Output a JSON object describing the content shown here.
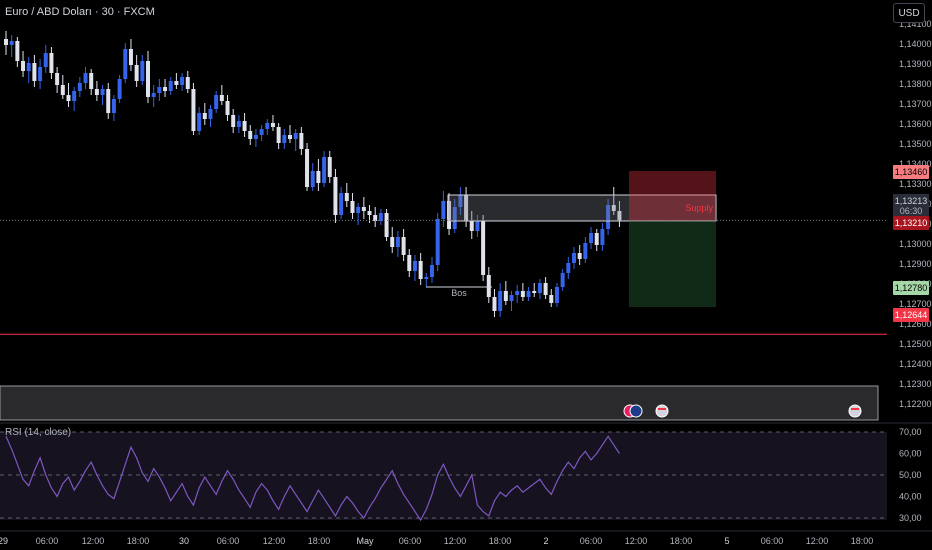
{
  "header": {
    "symbol_title": "Euro / ABD Doları · 30 · FXCM",
    "currency": "USD"
  },
  "rsi_title": "RSI (14, close)",
  "price_axis": {
    "ticks": [
      "1,14100",
      "1,14000",
      "1,13900",
      "1,13800",
      "1,13700",
      "1,13600",
      "1,13500",
      "1,13400",
      "1,13300",
      "1,13200",
      "1,13100",
      "1,13000",
      "1,12900",
      "1,12800",
      "1,12700",
      "1,12600",
      "1,12500",
      "1,12400",
      "1,12300",
      "1,12200"
    ],
    "current_price": "1,13213",
    "countdown": "06:30",
    "stop_loss": "1,13460",
    "entry": "1,13210",
    "take_profit": "1,12780",
    "support_line": "1,12644"
  },
  "rsi_axis": {
    "ticks": [
      "70,00",
      "60,00",
      "50,00",
      "40,00",
      "30,00"
    ]
  },
  "time_axis": {
    "labels": [
      "29",
      "06:00",
      "12:00",
      "18:00",
      "30",
      "06:00",
      "12:00",
      "18:00",
      "May",
      "06:00",
      "12:00",
      "18:00",
      "2",
      "06:00",
      "12:00",
      "18:00",
      "5",
      "06:00",
      "12:00",
      "18:00"
    ]
  },
  "annotations": {
    "supply_label": "Supply",
    "bos_label": "Bos"
  },
  "colors": {
    "bull": "#3563e9",
    "bear": "#e0e3eb",
    "red_line": "#f23645",
    "sl_zone": "#f23645",
    "tp_zone": "#1e3a25",
    "rsi_line": "#7e57c2"
  },
  "icons": [
    "flag-icon-eu-euro",
    "flag-icon-eu",
    "flag-icon-us",
    "flag-icon-us"
  ],
  "chart_data": {
    "type": "candlestick",
    "y_range": [
      1.1215,
      1.1415
    ],
    "x_range_days": [
      "29",
      "30",
      "May",
      "2",
      "5"
    ],
    "candles": [
      [
        1.1412,
        1.1416,
        1.1404,
        1.1409
      ],
      [
        1.1409,
        1.1414,
        1.1403,
        1.1411
      ],
      [
        1.1411,
        1.1413,
        1.1398,
        1.1401
      ],
      [
        1.1401,
        1.1406,
        1.1393,
        1.1396
      ],
      [
        1.1396,
        1.1403,
        1.139,
        1.14
      ],
      [
        1.14,
        1.1404,
        1.1388,
        1.1391
      ],
      [
        1.1391,
        1.1402,
        1.1387,
        1.1398
      ],
      [
        1.1398,
        1.1409,
        1.1395,
        1.1405
      ],
      [
        1.1405,
        1.1408,
        1.1392,
        1.1395
      ],
      [
        1.1395,
        1.1398,
        1.1385,
        1.1389
      ],
      [
        1.1389,
        1.1394,
        1.1382,
        1.1384
      ],
      [
        1.1384,
        1.139,
        1.1378,
        1.1381
      ],
      [
        1.1381,
        1.1388,
        1.1376,
        1.1386
      ],
      [
        1.1386,
        1.1393,
        1.1383,
        1.139
      ],
      [
        1.139,
        1.1398,
        1.1387,
        1.1395
      ],
      [
        1.1395,
        1.1397,
        1.1384,
        1.1387
      ],
      [
        1.1387,
        1.1391,
        1.1381,
        1.1384
      ],
      [
        1.1384,
        1.1389,
        1.1379,
        1.1387
      ],
      [
        1.1387,
        1.139,
        1.1372,
        1.1375
      ],
      [
        1.1375,
        1.1384,
        1.1371,
        1.1382
      ],
      [
        1.1382,
        1.1394,
        1.138,
        1.1392
      ],
      [
        1.1392,
        1.141,
        1.139,
        1.1407
      ],
      [
        1.1407,
        1.1412,
        1.1396,
        1.1399
      ],
      [
        1.1399,
        1.1404,
        1.1388,
        1.1391
      ],
      [
        1.1391,
        1.1404,
        1.1389,
        1.1401
      ],
      [
        1.1401,
        1.1406,
        1.138,
        1.1383
      ],
      [
        1.1383,
        1.1389,
        1.1378,
        1.1385
      ],
      [
        1.1385,
        1.1392,
        1.1381,
        1.1388
      ],
      [
        1.1388,
        1.1392,
        1.1383,
        1.1386
      ],
      [
        1.1386,
        1.1393,
        1.1384,
        1.1391
      ],
      [
        1.1391,
        1.1395,
        1.1387,
        1.1389
      ],
      [
        1.1389,
        1.1395,
        1.1386,
        1.1393
      ],
      [
        1.1393,
        1.1396,
        1.1385,
        1.1387
      ],
      [
        1.1387,
        1.139,
        1.1364,
        1.1366
      ],
      [
        1.1366,
        1.1378,
        1.1364,
        1.1375
      ],
      [
        1.1375,
        1.138,
        1.1369,
        1.1372
      ],
      [
        1.1372,
        1.1379,
        1.1368,
        1.1377
      ],
      [
        1.1377,
        1.1386,
        1.1375,
        1.1384
      ],
      [
        1.1384,
        1.1389,
        1.1379,
        1.1381
      ],
      [
        1.1381,
        1.1384,
        1.1371,
        1.1374
      ],
      [
        1.1374,
        1.1377,
        1.1365,
        1.1368
      ],
      [
        1.1368,
        1.1374,
        1.1365,
        1.1371
      ],
      [
        1.1371,
        1.1375,
        1.1363,
        1.1366
      ],
      [
        1.1366,
        1.1369,
        1.1359,
        1.1362
      ],
      [
        1.1362,
        1.1367,
        1.1358,
        1.1364
      ],
      [
        1.1364,
        1.1369,
        1.1361,
        1.1367
      ],
      [
        1.1367,
        1.1372,
        1.1364,
        1.137
      ],
      [
        1.137,
        1.1374,
        1.1366,
        1.1368
      ],
      [
        1.1368,
        1.137,
        1.1357,
        1.136
      ],
      [
        1.136,
        1.1367,
        1.1357,
        1.1364
      ],
      [
        1.1364,
        1.1369,
        1.136,
        1.1362
      ],
      [
        1.1362,
        1.1367,
        1.1356,
        1.1365
      ],
      [
        1.1365,
        1.1368,
        1.1354,
        1.1357
      ],
      [
        1.1357,
        1.136,
        1.1336,
        1.1338
      ],
      [
        1.1338,
        1.135,
        1.1336,
        1.1346
      ],
      [
        1.1346,
        1.1352,
        1.1336,
        1.134
      ],
      [
        1.134,
        1.1356,
        1.1338,
        1.1353
      ],
      [
        1.1353,
        1.1356,
        1.134,
        1.1343
      ],
      [
        1.1343,
        1.1347,
        1.132,
        1.1324
      ],
      [
        1.1324,
        1.1338,
        1.1322,
        1.1335
      ],
      [
        1.1335,
        1.134,
        1.1328,
        1.1331
      ],
      [
        1.1331,
        1.1335,
        1.1322,
        1.1325
      ],
      [
        1.1325,
        1.133,
        1.1319,
        1.1328
      ],
      [
        1.1328,
        1.1333,
        1.1322,
        1.1326
      ],
      [
        1.1326,
        1.1329,
        1.132,
        1.1324
      ],
      [
        1.1324,
        1.1328,
        1.1318,
        1.1321
      ],
      [
        1.1321,
        1.1327,
        1.1319,
        1.1325
      ],
      [
        1.1325,
        1.1327,
        1.1311,
        1.1313
      ],
      [
        1.1313,
        1.1318,
        1.1305,
        1.1308
      ],
      [
        1.1308,
        1.1316,
        1.1303,
        1.1313
      ],
      [
        1.1313,
        1.1317,
        1.1301,
        1.1304
      ],
      [
        1.1304,
        1.1307,
        1.1293,
        1.1296
      ],
      [
        1.1296,
        1.1304,
        1.1291,
        1.1301
      ],
      [
        1.1301,
        1.1305,
        1.1289,
        1.1292
      ],
      [
        1.1292,
        1.1295,
        1.1288,
        1.1293
      ],
      [
        1.1293,
        1.1303,
        1.129,
        1.1299
      ],
      [
        1.1299,
        1.1325,
        1.1296,
        1.1322
      ],
      [
        1.1322,
        1.1336,
        1.1318,
        1.1331
      ],
      [
        1.1331,
        1.1335,
        1.1314,
        1.1317
      ],
      [
        1.1317,
        1.1332,
        1.1315,
        1.1328
      ],
      [
        1.1328,
        1.1338,
        1.1324,
        1.1334
      ],
      [
        1.1334,
        1.1338,
        1.1318,
        1.1321
      ],
      [
        1.1321,
        1.1326,
        1.1312,
        1.1316
      ],
      [
        1.1316,
        1.1324,
        1.1313,
        1.1321
      ],
      [
        1.1321,
        1.1324,
        1.1291,
        1.1294
      ],
      [
        1.1294,
        1.1298,
        1.128,
        1.1283
      ],
      [
        1.1283,
        1.1287,
        1.1273,
        1.1276
      ],
      [
        1.1276,
        1.129,
        1.1273,
        1.1286
      ],
      [
        1.1286,
        1.1291,
        1.1279,
        1.1281
      ],
      [
        1.1281,
        1.1286,
        1.1276,
        1.1284
      ],
      [
        1.1284,
        1.1289,
        1.128,
        1.1286
      ],
      [
        1.1286,
        1.129,
        1.1281,
        1.1283
      ],
      [
        1.1283,
        1.1288,
        1.1281,
        1.1286
      ],
      [
        1.1286,
        1.129,
        1.1283,
        1.1285
      ],
      [
        1.1285,
        1.1292,
        1.1282,
        1.129
      ],
      [
        1.129,
        1.1293,
        1.1282,
        1.1284
      ],
      [
        1.1284,
        1.1287,
        1.1278,
        1.128
      ],
      [
        1.128,
        1.129,
        1.1278,
        1.1288
      ],
      [
        1.1288,
        1.1297,
        1.1286,
        1.1295
      ],
      [
        1.1295,
        1.1303,
        1.1292,
        1.13
      ],
      [
        1.13,
        1.1308,
        1.1297,
        1.1305
      ],
      [
        1.1305,
        1.1309,
        1.1299,
        1.1302
      ],
      [
        1.1302,
        1.1313,
        1.13,
        1.131
      ],
      [
        1.131,
        1.1318,
        1.1307,
        1.1315
      ],
      [
        1.1315,
        1.1317,
        1.1306,
        1.1309
      ],
      [
        1.1309,
        1.132,
        1.1306,
        1.1317
      ],
      [
        1.1317,
        1.1332,
        1.1314,
        1.1329
      ],
      [
        1.1329,
        1.1338,
        1.1324,
        1.1326
      ],
      [
        1.1326,
        1.1331,
        1.1318,
        1.1321
      ]
    ],
    "supply_zone": [
      1.1334,
      1.1321
    ],
    "bos_level": 1.1288,
    "position": {
      "stop_loss": 1.1346,
      "entry": 1.1321,
      "take_profit": 1.1278
    },
    "support_line": 1.12644,
    "rsi": {
      "name": "RSI (14, close)",
      "y_range": [
        27,
        72
      ],
      "levels": [
        70,
        50,
        30
      ],
      "values": [
        68,
        62,
        55,
        48,
        45,
        52,
        58,
        50,
        44,
        40,
        46,
        49,
        43,
        47,
        52,
        56,
        50,
        45,
        41,
        39,
        47,
        55,
        63,
        58,
        51,
        47,
        53,
        49,
        44,
        38,
        42,
        46,
        40,
        36,
        44,
        49,
        45,
        41,
        47,
        52,
        48,
        43,
        39,
        35,
        42,
        46,
        43,
        38,
        34,
        40,
        45,
        41,
        37,
        33,
        38,
        43,
        39,
        35,
        31,
        36,
        40,
        37,
        33,
        30,
        35,
        39,
        44,
        48,
        52,
        46,
        41,
        37,
        33,
        29,
        34,
        41,
        50,
        55,
        49,
        44,
        40,
        45,
        50,
        36,
        33,
        31,
        38,
        42,
        40,
        43,
        45,
        42,
        44,
        46,
        48,
        44,
        41,
        47,
        52,
        56,
        53,
        58,
        61,
        57,
        60,
        64,
        68,
        64,
        60
      ]
    }
  }
}
